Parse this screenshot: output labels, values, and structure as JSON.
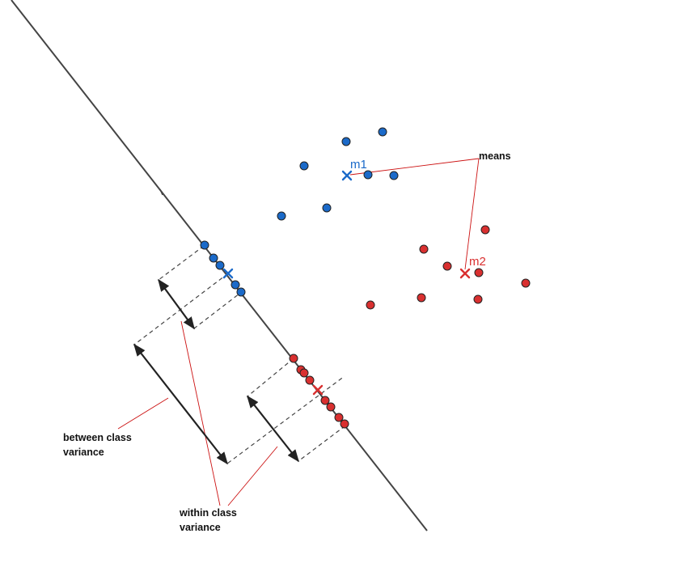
{
  "labels": {
    "means": "means",
    "m1": "m1",
    "m2": "m2",
    "between_line1": "between class",
    "between_line2": "variance",
    "within_line1": "within class",
    "within_line2": "variance"
  },
  "colors": {
    "class1": "#1b6ac9",
    "class2": "#d93030",
    "axis": "#444444",
    "annotation": "#cc1111",
    "arrow": "#222222"
  }
}
